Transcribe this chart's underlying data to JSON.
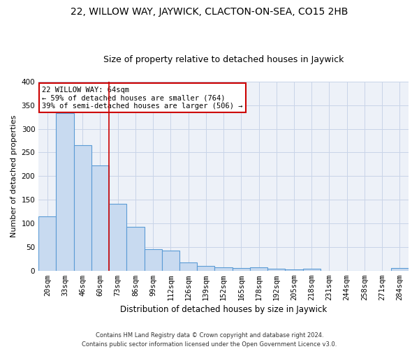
{
  "title": "22, WILLOW WAY, JAYWICK, CLACTON-ON-SEA, CO15 2HB",
  "subtitle": "Size of property relative to detached houses in Jaywick",
  "xlabel": "Distribution of detached houses by size in Jaywick",
  "ylabel": "Number of detached properties",
  "footer": "Contains HM Land Registry data © Crown copyright and database right 2024.\nContains public sector information licensed under the Open Government Licence v3.0.",
  "categories": [
    "20sqm",
    "33sqm",
    "46sqm",
    "60sqm",
    "73sqm",
    "86sqm",
    "99sqm",
    "112sqm",
    "126sqm",
    "139sqm",
    "152sqm",
    "165sqm",
    "178sqm",
    "192sqm",
    "205sqm",
    "218sqm",
    "231sqm",
    "244sqm",
    "258sqm",
    "271sqm",
    "284sqm"
  ],
  "values": [
    114,
    333,
    265,
    222,
    141,
    92,
    45,
    43,
    17,
    10,
    7,
    5,
    7,
    4,
    3,
    4,
    0,
    0,
    0,
    0,
    5
  ],
  "bar_color": "#c8daf0",
  "bar_edge_color": "#5b9bd5",
  "bar_linewidth": 0.8,
  "vline_x_index": 3.5,
  "annotation_line1": "22 WILLOW WAY: 64sqm",
  "annotation_line2": "← 59% of detached houses are smaller (764)",
  "annotation_line3": "39% of semi-detached houses are larger (506) →",
  "annotation_box_color": "#ffffff",
  "annotation_box_edge": "#cc0000",
  "vline_color": "#cc0000",
  "ylim": [
    0,
    400
  ],
  "yticks": [
    0,
    50,
    100,
    150,
    200,
    250,
    300,
    350,
    400
  ],
  "grid_color": "#c8d4e8",
  "bg_color": "#edf1f8",
  "title_fontsize": 10,
  "subtitle_fontsize": 9,
  "ylabel_fontsize": 8,
  "xlabel_fontsize": 8.5,
  "tick_fontsize": 7.5,
  "footer_fontsize": 6,
  "annotation_fontsize": 7.5
}
